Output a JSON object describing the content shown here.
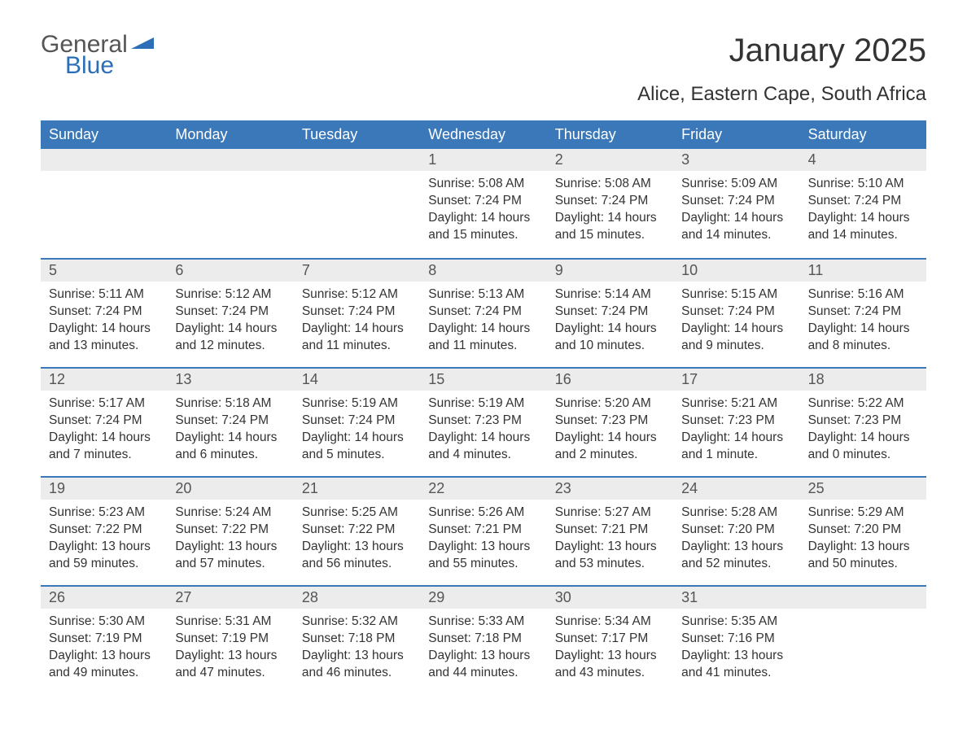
{
  "logo": {
    "text1": "General",
    "text2": "Blue"
  },
  "title": "January 2025",
  "subtitle": "Alice, Eastern Cape, South Africa",
  "colors": {
    "header_bg": "#3a78b9",
    "header_text": "#ffffff",
    "daynum_bg": "#ececec",
    "daynum_text": "#555555",
    "body_text": "#333333",
    "logo_gray": "#555555",
    "logo_blue": "#2d6fb6",
    "week_border": "#3a78b9",
    "page_bg": "#ffffff"
  },
  "fonts": {
    "title_size_pt": 30,
    "subtitle_size_pt": 18,
    "weekday_size_pt": 13.5,
    "daynum_size_pt": 13.5,
    "body_size_pt": 11.5
  },
  "weekdays": [
    "Sunday",
    "Monday",
    "Tuesday",
    "Wednesday",
    "Thursday",
    "Friday",
    "Saturday"
  ],
  "weeks": [
    [
      null,
      null,
      null,
      {
        "n": "1",
        "sunrise": "Sunrise: 5:08 AM",
        "sunset": "Sunset: 7:24 PM",
        "daylight": "Daylight: 14 hours and 15 minutes."
      },
      {
        "n": "2",
        "sunrise": "Sunrise: 5:08 AM",
        "sunset": "Sunset: 7:24 PM",
        "daylight": "Daylight: 14 hours and 15 minutes."
      },
      {
        "n": "3",
        "sunrise": "Sunrise: 5:09 AM",
        "sunset": "Sunset: 7:24 PM",
        "daylight": "Daylight: 14 hours and 14 minutes."
      },
      {
        "n": "4",
        "sunrise": "Sunrise: 5:10 AM",
        "sunset": "Sunset: 7:24 PM",
        "daylight": "Daylight: 14 hours and 14 minutes."
      }
    ],
    [
      {
        "n": "5",
        "sunrise": "Sunrise: 5:11 AM",
        "sunset": "Sunset: 7:24 PM",
        "daylight": "Daylight: 14 hours and 13 minutes."
      },
      {
        "n": "6",
        "sunrise": "Sunrise: 5:12 AM",
        "sunset": "Sunset: 7:24 PM",
        "daylight": "Daylight: 14 hours and 12 minutes."
      },
      {
        "n": "7",
        "sunrise": "Sunrise: 5:12 AM",
        "sunset": "Sunset: 7:24 PM",
        "daylight": "Daylight: 14 hours and 11 minutes."
      },
      {
        "n": "8",
        "sunrise": "Sunrise: 5:13 AM",
        "sunset": "Sunset: 7:24 PM",
        "daylight": "Daylight: 14 hours and 11 minutes."
      },
      {
        "n": "9",
        "sunrise": "Sunrise: 5:14 AM",
        "sunset": "Sunset: 7:24 PM",
        "daylight": "Daylight: 14 hours and 10 minutes."
      },
      {
        "n": "10",
        "sunrise": "Sunrise: 5:15 AM",
        "sunset": "Sunset: 7:24 PM",
        "daylight": "Daylight: 14 hours and 9 minutes."
      },
      {
        "n": "11",
        "sunrise": "Sunrise: 5:16 AM",
        "sunset": "Sunset: 7:24 PM",
        "daylight": "Daylight: 14 hours and 8 minutes."
      }
    ],
    [
      {
        "n": "12",
        "sunrise": "Sunrise: 5:17 AM",
        "sunset": "Sunset: 7:24 PM",
        "daylight": "Daylight: 14 hours and 7 minutes."
      },
      {
        "n": "13",
        "sunrise": "Sunrise: 5:18 AM",
        "sunset": "Sunset: 7:24 PM",
        "daylight": "Daylight: 14 hours and 6 minutes."
      },
      {
        "n": "14",
        "sunrise": "Sunrise: 5:19 AM",
        "sunset": "Sunset: 7:24 PM",
        "daylight": "Daylight: 14 hours and 5 minutes."
      },
      {
        "n": "15",
        "sunrise": "Sunrise: 5:19 AM",
        "sunset": "Sunset: 7:23 PM",
        "daylight": "Daylight: 14 hours and 4 minutes."
      },
      {
        "n": "16",
        "sunrise": "Sunrise: 5:20 AM",
        "sunset": "Sunset: 7:23 PM",
        "daylight": "Daylight: 14 hours and 2 minutes."
      },
      {
        "n": "17",
        "sunrise": "Sunrise: 5:21 AM",
        "sunset": "Sunset: 7:23 PM",
        "daylight": "Daylight: 14 hours and 1 minute."
      },
      {
        "n": "18",
        "sunrise": "Sunrise: 5:22 AM",
        "sunset": "Sunset: 7:23 PM",
        "daylight": "Daylight: 14 hours and 0 minutes."
      }
    ],
    [
      {
        "n": "19",
        "sunrise": "Sunrise: 5:23 AM",
        "sunset": "Sunset: 7:22 PM",
        "daylight": "Daylight: 13 hours and 59 minutes."
      },
      {
        "n": "20",
        "sunrise": "Sunrise: 5:24 AM",
        "sunset": "Sunset: 7:22 PM",
        "daylight": "Daylight: 13 hours and 57 minutes."
      },
      {
        "n": "21",
        "sunrise": "Sunrise: 5:25 AM",
        "sunset": "Sunset: 7:22 PM",
        "daylight": "Daylight: 13 hours and 56 minutes."
      },
      {
        "n": "22",
        "sunrise": "Sunrise: 5:26 AM",
        "sunset": "Sunset: 7:21 PM",
        "daylight": "Daylight: 13 hours and 55 minutes."
      },
      {
        "n": "23",
        "sunrise": "Sunrise: 5:27 AM",
        "sunset": "Sunset: 7:21 PM",
        "daylight": "Daylight: 13 hours and 53 minutes."
      },
      {
        "n": "24",
        "sunrise": "Sunrise: 5:28 AM",
        "sunset": "Sunset: 7:20 PM",
        "daylight": "Daylight: 13 hours and 52 minutes."
      },
      {
        "n": "25",
        "sunrise": "Sunrise: 5:29 AM",
        "sunset": "Sunset: 7:20 PM",
        "daylight": "Daylight: 13 hours and 50 minutes."
      }
    ],
    [
      {
        "n": "26",
        "sunrise": "Sunrise: 5:30 AM",
        "sunset": "Sunset: 7:19 PM",
        "daylight": "Daylight: 13 hours and 49 minutes."
      },
      {
        "n": "27",
        "sunrise": "Sunrise: 5:31 AM",
        "sunset": "Sunset: 7:19 PM",
        "daylight": "Daylight: 13 hours and 47 minutes."
      },
      {
        "n": "28",
        "sunrise": "Sunrise: 5:32 AM",
        "sunset": "Sunset: 7:18 PM",
        "daylight": "Daylight: 13 hours and 46 minutes."
      },
      {
        "n": "29",
        "sunrise": "Sunrise: 5:33 AM",
        "sunset": "Sunset: 7:18 PM",
        "daylight": "Daylight: 13 hours and 44 minutes."
      },
      {
        "n": "30",
        "sunrise": "Sunrise: 5:34 AM",
        "sunset": "Sunset: 7:17 PM",
        "daylight": "Daylight: 13 hours and 43 minutes."
      },
      {
        "n": "31",
        "sunrise": "Sunrise: 5:35 AM",
        "sunset": "Sunset: 7:16 PM",
        "daylight": "Daylight: 13 hours and 41 minutes."
      },
      null
    ]
  ]
}
